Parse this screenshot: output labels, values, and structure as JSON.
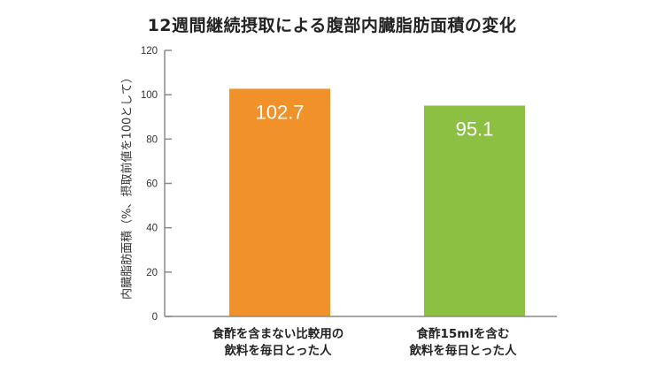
{
  "chart_data": {
    "type": "bar",
    "title": "12週間継続摂取による腹部内臓脂肪面積の変化",
    "ylabel": "内臓脂肪面積（%、摂取前値を100として）",
    "xlabel": "",
    "ylim": [
      0,
      120
    ],
    "yticks": [
      0,
      20,
      40,
      60,
      80,
      100,
      120
    ],
    "grid": false,
    "categories": [
      {
        "lines": [
          "食酢を含まない比較用の",
          "飲料を毎日とった人"
        ],
        "value": 102.7,
        "label": "102.7",
        "color": "#F0912A"
      },
      {
        "lines": [
          "食酢15mlを含む",
          "飲料を毎日とった人"
        ],
        "value": 95.1,
        "label": "95.1",
        "color": "#8CC043"
      }
    ]
  },
  "colors": {
    "axis": "#8a8a8a",
    "value_label": "#ffffff"
  }
}
